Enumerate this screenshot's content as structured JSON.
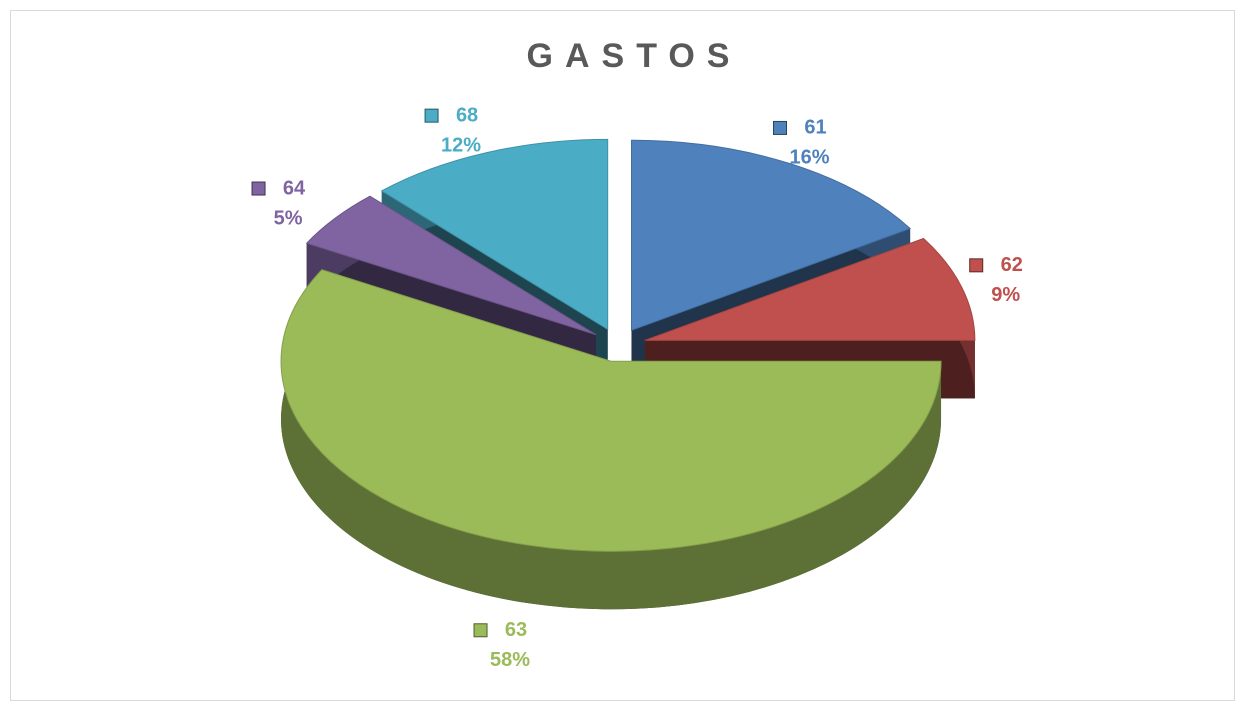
{
  "chart_data": {
    "type": "pie",
    "title": "GASTOS",
    "categories": [
      "61",
      "62",
      "63",
      "64",
      "68"
    ],
    "values": [
      16,
      9,
      58,
      5,
      12
    ],
    "value_labels": [
      "16%",
      "9%",
      "58%",
      "5%",
      "12%"
    ],
    "colors": [
      "#4f81bd",
      "#c0504d",
      "#9bbb59",
      "#8064a2",
      "#4bacc6"
    ],
    "legend": "none"
  }
}
